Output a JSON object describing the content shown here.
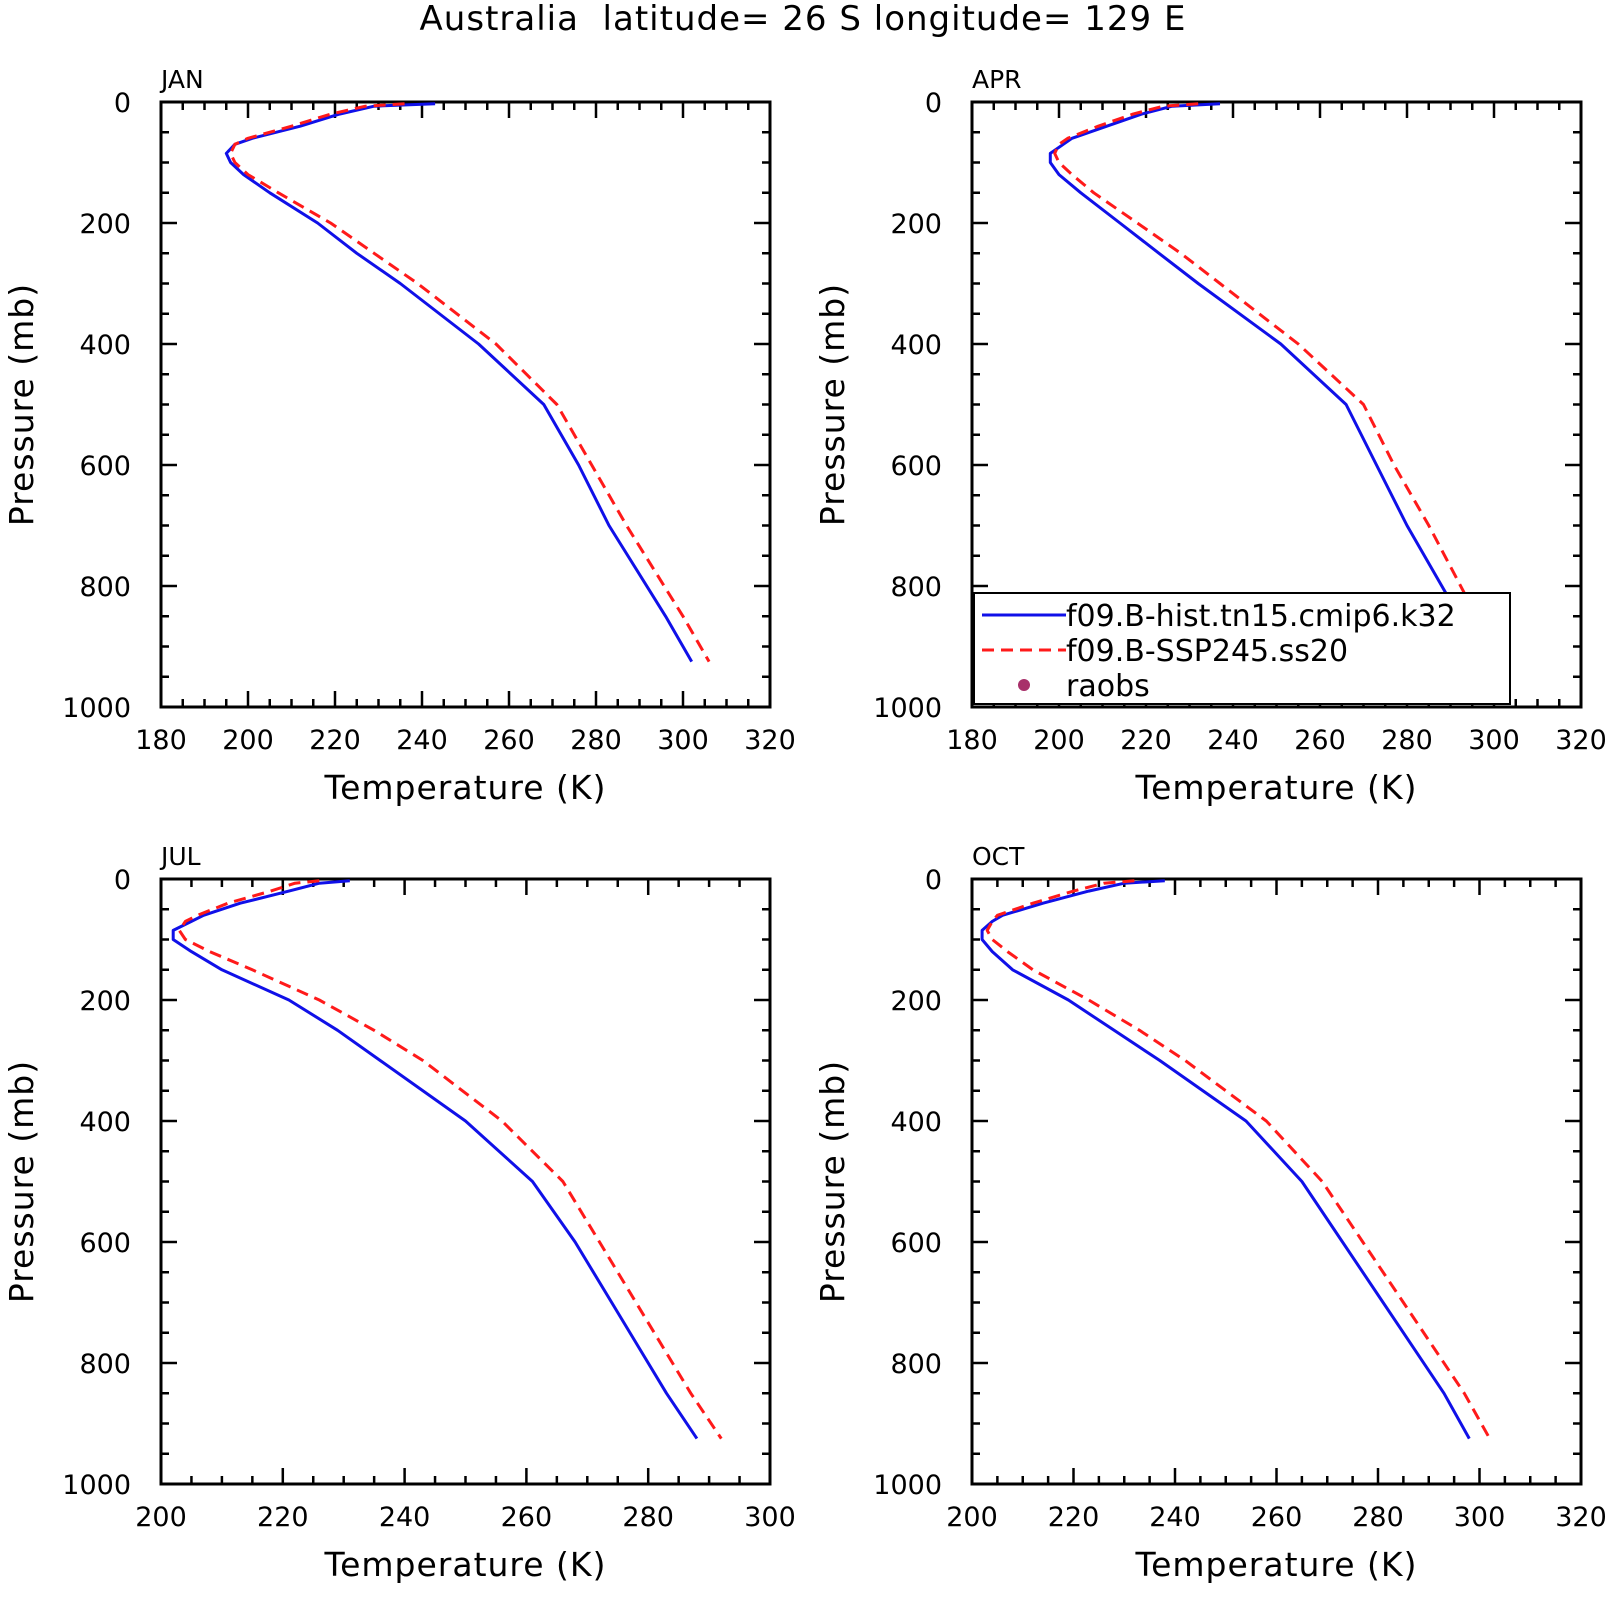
{
  "title": "Australia  latitude= 26 S longitude= 129 E",
  "colors": {
    "hist": "#1010e8",
    "ssp": "#ff1a1a",
    "raobs": "#a8306a"
  },
  "legend": {
    "panel": 1,
    "entries": [
      {
        "label": "f09.B-hist.tn15.cmip6.k32",
        "style": "solid",
        "color": "#1010e8"
      },
      {
        "label": "f09.B-SSP245.ss20",
        "style": "dashed",
        "color": "#ff1a1a"
      },
      {
        "label": "raobs",
        "style": "dot",
        "color": "#a8306a"
      }
    ]
  },
  "chart_data": [
    {
      "type": "line",
      "panel_label": "JAN",
      "xlabel": "Temperature (K)",
      "ylabel": "Pressure (mb)",
      "xlim": [
        180,
        320
      ],
      "ylim": [
        1000,
        0
      ],
      "xticks": [
        180,
        200,
        220,
        240,
        260,
        280,
        300,
        320
      ],
      "yticks": [
        0,
        200,
        400,
        600,
        800,
        1000
      ],
      "pressure": [
        3,
        7,
        20,
        40,
        60,
        70,
        85,
        100,
        120,
        150,
        200,
        250,
        300,
        400,
        500,
        600,
        700,
        850,
        925
      ],
      "series": [
        {
          "name": "f09.B-hist.tn15.cmip6.k32",
          "color": "#1010e8",
          "dash": "solid",
          "values": [
            243,
            229,
            221,
            212,
            201,
            197,
            195,
            196,
            199,
            205,
            216,
            225,
            235,
            253,
            268,
            276,
            283,
            296,
            302
          ]
        },
        {
          "name": "f09.B-SSP245.ss20",
          "color": "#ff1a1a",
          "dash": "dashed",
          "values": [
            236,
            227,
            219,
            210,
            200,
            197,
            196,
            197,
            200,
            207,
            219,
            229,
            239,
            257,
            271,
            279,
            287,
            300,
            306
          ]
        }
      ]
    },
    {
      "type": "line",
      "panel_label": "APR",
      "xlabel": "Temperature (K)",
      "ylabel": "Pressure (mb)",
      "xlim": [
        180,
        320
      ],
      "ylim": [
        1000,
        0
      ],
      "xticks": [
        180,
        200,
        220,
        240,
        260,
        280,
        300,
        320
      ],
      "yticks": [
        0,
        200,
        400,
        600,
        800,
        1000
      ],
      "pressure": [
        3,
        7,
        20,
        40,
        60,
        70,
        85,
        100,
        120,
        150,
        200,
        250,
        300,
        400,
        500,
        600,
        700,
        850,
        925
      ],
      "series": [
        {
          "name": "f09.B-hist.tn15.cmip6.k32",
          "color": "#1010e8",
          "dash": "solid",
          "values": [
            237,
            226,
            219,
            211,
            203,
            201,
            198,
            198,
            200,
            205,
            214,
            223,
            232,
            251,
            266,
            273,
            280,
            292,
            297
          ]
        },
        {
          "name": "f09.B-SSP245.ss20",
          "color": "#ff1a1a",
          "dash": "dashed",
          "values": [
            232,
            224,
            217,
            209,
            202,
            200,
            199,
            200,
            203,
            208,
            218,
            228,
            237,
            255,
            270,
            277,
            285,
            296,
            301
          ]
        }
      ]
    },
    {
      "type": "line",
      "panel_label": "JUL",
      "xlabel": "Temperature (K)",
      "ylabel": "Pressure (mb)",
      "xlim": [
        200,
        300
      ],
      "ylim": [
        1000,
        0
      ],
      "xticks": [
        200,
        220,
        240,
        260,
        280,
        300
      ],
      "yticks": [
        0,
        200,
        400,
        600,
        800,
        1000
      ],
      "pressure": [
        3,
        7,
        20,
        40,
        60,
        70,
        85,
        100,
        120,
        150,
        200,
        250,
        300,
        400,
        500,
        600,
        700,
        850,
        925
      ],
      "series": [
        {
          "name": "f09.B-hist.tn15.cmip6.k32",
          "color": "#1010e8",
          "dash": "solid",
          "values": [
            231,
            226,
            221,
            213,
            207,
            205,
            202,
            202,
            205,
            210,
            221,
            229,
            236,
            250,
            261,
            268,
            274,
            283,
            288
          ]
        },
        {
          "name": "f09.B-SSP245.ss20",
          "color": "#ff1a1a",
          "dash": "dashed",
          "values": [
            226,
            222,
            218,
            211,
            206,
            204,
            203,
            204,
            208,
            215,
            226,
            235,
            243,
            256,
            266,
            272,
            278,
            287,
            292
          ]
        }
      ]
    },
    {
      "type": "line",
      "panel_label": "OCT",
      "xlabel": "Temperature (K)",
      "ylabel": "Pressure (mb)",
      "xlim": [
        200,
        320
      ],
      "ylim": [
        1000,
        0
      ],
      "xticks": [
        200,
        220,
        240,
        260,
        280,
        300,
        320
      ],
      "yticks": [
        0,
        200,
        400,
        600,
        800,
        1000
      ],
      "pressure": [
        3,
        7,
        20,
        40,
        60,
        70,
        85,
        100,
        120,
        150,
        200,
        250,
        300,
        400,
        500,
        600,
        700,
        850,
        925
      ],
      "series": [
        {
          "name": "f09.B-hist.tn15.cmip6.k32",
          "color": "#1010e8",
          "dash": "solid",
          "values": [
            238,
            230,
            223,
            214,
            206,
            204,
            202,
            202,
            204,
            208,
            219,
            228,
            237,
            254,
            265,
            273,
            281,
            293,
            298
          ]
        },
        {
          "name": "f09.B-SSP245.ss20",
          "color": "#ff1a1a",
          "dash": "dashed",
          "values": [
            232,
            226,
            220,
            212,
            205,
            204,
            203,
            204,
            207,
            212,
            223,
            233,
            242,
            258,
            269,
            277,
            285,
            297,
            302
          ]
        }
      ]
    }
  ]
}
